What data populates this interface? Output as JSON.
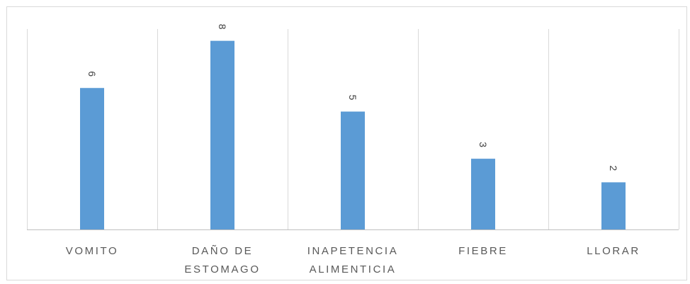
{
  "chart_data": {
    "type": "bar",
    "categories": [
      "VOMITO",
      "DAÑO DE ESTOMAGO",
      "INAPETENCIA ALIMENTICIA",
      "FIEBRE",
      "LLORAR"
    ],
    "category_lines": [
      [
        "VOMITO"
      ],
      [
        "DAÑO DE",
        "ESTOMAGO"
      ],
      [
        "INAPETENCIA",
        "ALIMENTICIA"
      ],
      [
        "FIEBRE"
      ],
      [
        "LLORAR"
      ]
    ],
    "values": [
      6,
      8,
      5,
      3,
      2
    ],
    "data_labels": [
      "6",
      "8",
      "5",
      "3",
      "2"
    ],
    "title": "",
    "xlabel": "",
    "ylabel": "",
    "ylim": [
      0,
      8.5
    ],
    "grid": "vertical-category-separators",
    "legend": "none",
    "data_label_rotation": "vertical",
    "colors": {
      "bar": "#5b9bd5",
      "gridline": "#d9d9d9",
      "axis": "#bfbfbf",
      "label": "#595959"
    }
  }
}
